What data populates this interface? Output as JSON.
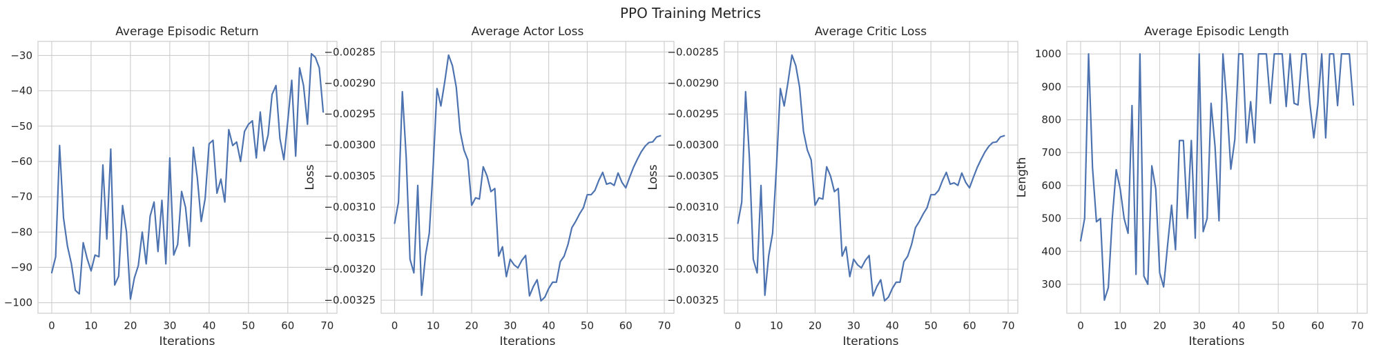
{
  "figure": {
    "title": "PPO Training Metrics"
  },
  "chart_data": [
    {
      "type": "line",
      "title": "Average Episodic Return",
      "xlabel": "Iterations",
      "ylabel": "",
      "xlim": [
        -3.5,
        72.5
      ],
      "ylim": [
        -103,
        -26
      ],
      "xticks": [
        0,
        10,
        20,
        30,
        40,
        50,
        60,
        70
      ],
      "yticks": [
        -100,
        -90,
        -80,
        -70,
        -60,
        -50,
        -40,
        -30
      ],
      "tick_decimals": 0,
      "grid": true,
      "color": "#4c72b0",
      "x": [
        0,
        1,
        2,
        3,
        4,
        5,
        6,
        7,
        8,
        9,
        10,
        11,
        12,
        13,
        14,
        15,
        16,
        17,
        18,
        19,
        20,
        21,
        22,
        23,
        24,
        25,
        26,
        27,
        28,
        29,
        30,
        31,
        32,
        33,
        34,
        35,
        36,
        37,
        38,
        39,
        40,
        41,
        42,
        43,
        44,
        45,
        46,
        47,
        48,
        49,
        50,
        51,
        52,
        53,
        54,
        55,
        56,
        57,
        58,
        59,
        60,
        61,
        62,
        63,
        64,
        65,
        66,
        67,
        68,
        69
      ],
      "y": [
        -91.5,
        -87,
        -55.5,
        -76,
        -84,
        -89,
        -96.5,
        -97.5,
        -83,
        -87.5,
        -91,
        -86.5,
        -87,
        -61,
        -82,
        -56.5,
        -95,
        -92.5,
        -72.5,
        -80,
        -99,
        -93,
        -89.5,
        -80,
        -89,
        -75.5,
        -71.5,
        -85.5,
        -71,
        -89,
        -59,
        -86.5,
        -83.5,
        -68.5,
        -73,
        -84,
        -56,
        -64.5,
        -77,
        -70.5,
        -55,
        -54,
        -69,
        -65,
        -71.5,
        -51,
        -55.5,
        -54.5,
        -60,
        -51.5,
        -49.5,
        -48.5,
        -59,
        -46,
        -57,
        -52.5,
        -41,
        -38.5,
        -53.5,
        -59.5,
        -48.5,
        -37,
        -58.5,
        -33.5,
        -38.5,
        -49.5,
        -29.5,
        -30.5,
        -33.5,
        -46
      ]
    },
    {
      "type": "line",
      "title": "Average Actor Loss",
      "xlabel": "Iterations",
      "ylabel": "Loss",
      "xlim": [
        -3.5,
        72.5
      ],
      "ylim": [
        -0.003271,
        -0.002833
      ],
      "xticks": [
        0,
        10,
        20,
        30,
        40,
        50,
        60,
        70
      ],
      "yticks": [
        -0.00325,
        -0.0032,
        -0.00315,
        -0.0031,
        -0.00305,
        -0.003,
        -0.00295,
        -0.0029,
        -0.00285
      ],
      "tick_decimals": 5,
      "grid": true,
      "color": "#4c72b0",
      "x": [
        0,
        1,
        2,
        3,
        4,
        5,
        6,
        7,
        8,
        9,
        10,
        11,
        12,
        13,
        14,
        15,
        16,
        17,
        18,
        19,
        20,
        21,
        22,
        23,
        24,
        25,
        26,
        27,
        28,
        29,
        30,
        31,
        32,
        33,
        34,
        35,
        36,
        37,
        38,
        39,
        40,
        41,
        42,
        43,
        44,
        45,
        46,
        47,
        48,
        49,
        50,
        51,
        52,
        53,
        54,
        55,
        56,
        57,
        58,
        59,
        60,
        61,
        62,
        63,
        64,
        65,
        66,
        67,
        68,
        69
      ],
      "y": [
        -0.003126,
        -0.003092,
        -0.002914,
        -0.00302,
        -0.003184,
        -0.003206,
        -0.003065,
        -0.003242,
        -0.003178,
        -0.003142,
        -0.003035,
        -0.002909,
        -0.002937,
        -0.002898,
        -0.002855,
        -0.002872,
        -0.002907,
        -0.002978,
        -0.003008,
        -0.003024,
        -0.003097,
        -0.003085,
        -0.003087,
        -0.003035,
        -0.00305,
        -0.003075,
        -0.00307,
        -0.003179,
        -0.003164,
        -0.003212,
        -0.003184,
        -0.003193,
        -0.003198,
        -0.003186,
        -0.003178,
        -0.003243,
        -0.003228,
        -0.003217,
        -0.003251,
        -0.003245,
        -0.003231,
        -0.003221,
        -0.003221,
        -0.003188,
        -0.003179,
        -0.00316,
        -0.003133,
        -0.003123,
        -0.003111,
        -0.003101,
        -0.00308,
        -0.00308,
        -0.003073,
        -0.003057,
        -0.003044,
        -0.003063,
        -0.003061,
        -0.003065,
        -0.003045,
        -0.00306,
        -0.003069,
        -0.003052,
        -0.003036,
        -0.003023,
        -0.003011,
        -0.003002,
        -0.002996,
        -0.002995,
        -0.002987,
        -0.002985
      ]
    },
    {
      "type": "line",
      "title": "Average Critic Loss",
      "xlabel": "Iterations",
      "ylabel": "Loss",
      "xlim": [
        -3.5,
        72.5
      ],
      "ylim": [
        -0.003271,
        -0.002833
      ],
      "xticks": [
        0,
        10,
        20,
        30,
        40,
        50,
        60,
        70
      ],
      "yticks": [
        -0.00325,
        -0.0032,
        -0.00315,
        -0.0031,
        -0.00305,
        -0.003,
        -0.00295,
        -0.0029,
        -0.00285
      ],
      "tick_decimals": 5,
      "grid": true,
      "color": "#4c72b0",
      "x": [
        0,
        1,
        2,
        3,
        4,
        5,
        6,
        7,
        8,
        9,
        10,
        11,
        12,
        13,
        14,
        15,
        16,
        17,
        18,
        19,
        20,
        21,
        22,
        23,
        24,
        25,
        26,
        27,
        28,
        29,
        30,
        31,
        32,
        33,
        34,
        35,
        36,
        37,
        38,
        39,
        40,
        41,
        42,
        43,
        44,
        45,
        46,
        47,
        48,
        49,
        50,
        51,
        52,
        53,
        54,
        55,
        56,
        57,
        58,
        59,
        60,
        61,
        62,
        63,
        64,
        65,
        66,
        67,
        68,
        69
      ],
      "y": [
        -0.003126,
        -0.003092,
        -0.002914,
        -0.00302,
        -0.003184,
        -0.003206,
        -0.003065,
        -0.003242,
        -0.003178,
        -0.003142,
        -0.003035,
        -0.002909,
        -0.002937,
        -0.002898,
        -0.002855,
        -0.002872,
        -0.002907,
        -0.002978,
        -0.003008,
        -0.003024,
        -0.003097,
        -0.003085,
        -0.003087,
        -0.003035,
        -0.00305,
        -0.003075,
        -0.00307,
        -0.003179,
        -0.003164,
        -0.003212,
        -0.003184,
        -0.003193,
        -0.003198,
        -0.003186,
        -0.003178,
        -0.003243,
        -0.003228,
        -0.003217,
        -0.003251,
        -0.003245,
        -0.003231,
        -0.003221,
        -0.003221,
        -0.003188,
        -0.003179,
        -0.00316,
        -0.003133,
        -0.003123,
        -0.003111,
        -0.003101,
        -0.00308,
        -0.00308,
        -0.003073,
        -0.003057,
        -0.003044,
        -0.003063,
        -0.003061,
        -0.003065,
        -0.003045,
        -0.00306,
        -0.003069,
        -0.003052,
        -0.003036,
        -0.003023,
        -0.003011,
        -0.003002,
        -0.002996,
        -0.002995,
        -0.002987,
        -0.002985
      ]
    },
    {
      "type": "line",
      "title": "Average Episodic Length",
      "xlabel": "Iterations",
      "ylabel": "Length",
      "xlim": [
        -3.5,
        72.5
      ],
      "ylim": [
        212,
        1038
      ],
      "xticks": [
        0,
        10,
        20,
        30,
        40,
        50,
        60,
        70
      ],
      "yticks": [
        300,
        400,
        500,
        600,
        700,
        800,
        900,
        1000
      ],
      "tick_decimals": 0,
      "grid": true,
      "color": "#4c72b0",
      "x": [
        0,
        1,
        2,
        3,
        4,
        5,
        6,
        7,
        8,
        9,
        10,
        11,
        12,
        13,
        14,
        15,
        16,
        17,
        18,
        19,
        20,
        21,
        22,
        23,
        24,
        25,
        26,
        27,
        28,
        29,
        30,
        31,
        32,
        33,
        34,
        35,
        36,
        37,
        38,
        39,
        40,
        41,
        42,
        43,
        44,
        45,
        46,
        47,
        48,
        49,
        50,
        51,
        52,
        53,
        54,
        55,
        56,
        57,
        58,
        59,
        60,
        61,
        62,
        63,
        64,
        65,
        66,
        67,
        68,
        69
      ],
      "y": [
        432,
        500,
        1000,
        655,
        490,
        500,
        252,
        290,
        500,
        648,
        590,
        500,
        455,
        843,
        330,
        1000,
        325,
        300,
        660,
        590,
        335,
        292,
        420,
        540,
        405,
        737,
        737,
        500,
        737,
        440,
        1000,
        460,
        500,
        850,
        720,
        493,
        1000,
        850,
        650,
        740,
        1000,
        1000,
        730,
        855,
        730,
        1000,
        1000,
        1000,
        850,
        1000,
        1000,
        1000,
        840,
        1000,
        850,
        845,
        1000,
        1000,
        850,
        745,
        845,
        1000,
        745,
        1000,
        1000,
        843,
        1000,
        1000,
        1000,
        845
      ]
    }
  ]
}
